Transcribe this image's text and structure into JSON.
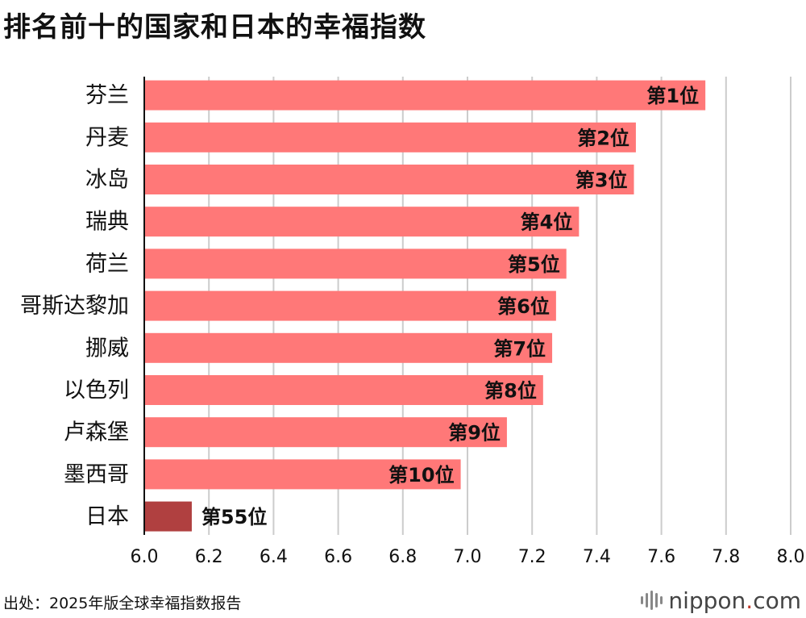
{
  "title": "排名前十的国家和日本的幸福指数",
  "source": "出处：2025年版全球幸福指数报告",
  "logo": {
    "name": "nippon",
    "dot": ".",
    "suffix": "com",
    "icon": "nippon-waves-icon"
  },
  "colors": {
    "bar": "#ff7878",
    "highlight": "#b04040",
    "grid": "#cccccc",
    "axis": "#111111"
  },
  "chart_data": {
    "type": "bar",
    "orientation": "horizontal",
    "title": "排名前十的国家和日本的幸福指数",
    "categories": [
      "芬兰",
      "丹麦",
      "冰岛",
      "瑞典",
      "荷兰",
      "哥斯达黎加",
      "挪威",
      "以色列",
      "卢森堡",
      "墨西哥",
      "日本"
    ],
    "values": [
      7.736,
      7.521,
      7.515,
      7.345,
      7.306,
      7.274,
      7.262,
      7.234,
      7.122,
      6.979,
      6.147
    ],
    "data_labels": [
      "第1位",
      "第2位",
      "第3位",
      "第4位",
      "第5位",
      "第6位",
      "第7位",
      "第8位",
      "第9位",
      "第10位",
      "第55位"
    ],
    "highlight_index": 10,
    "xlim": [
      6.0,
      8.0
    ],
    "xticks": [
      "6.0",
      "6.2",
      "6.4",
      "6.6",
      "6.8",
      "7.0",
      "7.2",
      "7.4",
      "7.6",
      "7.8",
      "8.0"
    ],
    "xtick_values": [
      6.0,
      6.2,
      6.4,
      6.6,
      6.8,
      7.0,
      7.2,
      7.4,
      7.6,
      7.8,
      8.0
    ],
    "xlabel": "",
    "ylabel": "",
    "grid": true
  }
}
